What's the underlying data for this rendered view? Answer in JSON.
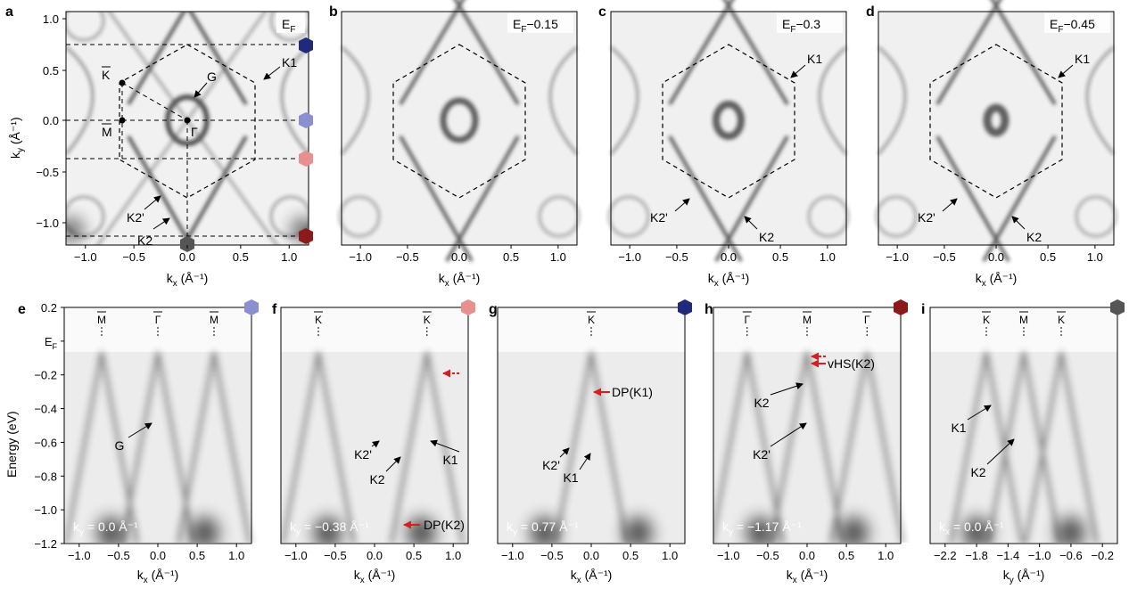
{
  "colors": {
    "hex_dark_blue": "#1f2a7a",
    "hex_light_blue": "#8a8fd0",
    "hex_pink": "#e89090",
    "hex_dark_red": "#8b1a1a",
    "hex_gray": "#555555",
    "arrow_red": "#d42020"
  },
  "top_panels": [
    {
      "label": "a",
      "energy": "E",
      "energy_sub": "F",
      "energy_suffix": ""
    },
    {
      "label": "b",
      "energy": "E",
      "energy_sub": "F",
      "energy_suffix": "−0.15"
    },
    {
      "label": "c",
      "energy": "E",
      "energy_sub": "F",
      "energy_suffix": "−0.3"
    },
    {
      "label": "d",
      "energy": "E",
      "energy_sub": "F",
      "energy_suffix": "−0.45"
    }
  ],
  "top_axes": {
    "x_ticks": [
      "−1.0",
      "−0.5",
      "0.0",
      "0.5",
      "1.0"
    ],
    "y_ticks": [
      "1.0",
      "0.5",
      "0.0",
      "−0.5",
      "−1.0"
    ],
    "xlabel": "k",
    "xlabel_sub": "x",
    "xlabel_unit": " (Å⁻¹)",
    "ylabel": "k",
    "ylabel_sub": "y",
    "ylabel_unit": " (Å⁻¹)"
  },
  "panel_a_annotations": {
    "G": "G",
    "K1": "K1",
    "K2p": "K2'",
    "K2": "K2",
    "Kbar": "K",
    "Mbar": "M",
    "Gamma": "Γ"
  },
  "panel_c_annotations": {
    "K1": "K1",
    "K2p": "K2'",
    "K2": "K2"
  },
  "panel_d_annotations": {
    "K1": "K1",
    "K2p": "K2'",
    "K2": "K2"
  },
  "bottom_panels": [
    {
      "label": "e",
      "momentum": "k",
      "momentum_sub": "y",
      "momentum_val": " = 0.0 Å⁻¹",
      "xlabel": "k",
      "xlabel_sub": "x",
      "x_ticks": [
        "−1.0",
        "−0.5",
        "0.0",
        "0.5",
        "1.0"
      ],
      "sym_points": [
        "M",
        "Γ",
        "M"
      ]
    },
    {
      "label": "f",
      "momentum": "k",
      "momentum_sub": "y",
      "momentum_val": " = −0.38 Å⁻¹",
      "xlabel": "k",
      "xlabel_sub": "x",
      "x_ticks": [
        "−1.0",
        "−0.5",
        "0.0",
        "0.5",
        "1.0"
      ],
      "sym_points": [
        "K",
        "K"
      ]
    },
    {
      "label": "g",
      "momentum": "k",
      "momentum_sub": "y",
      "momentum_val": " = 0.77 Å⁻¹",
      "xlabel": "k",
      "xlabel_sub": "x",
      "x_ticks": [
        "−1.0",
        "−0.5",
        "0.0",
        "0.5",
        "1.0"
      ],
      "sym_points": [
        "K"
      ]
    },
    {
      "label": "h",
      "momentum": "k",
      "momentum_sub": "y",
      "momentum_val": " = −1.17 Å⁻¹",
      "xlabel": "k",
      "xlabel_sub": "x",
      "x_ticks": [
        "−1.0",
        "−0.5",
        "0.0",
        "0.5",
        "1.0"
      ],
      "sym_points": [
        "Γ",
        "M",
        "Γ"
      ]
    },
    {
      "label": "i",
      "momentum": "k",
      "momentum_sub": "x",
      "momentum_val": " = 0.0 Å⁻¹",
      "xlabel": "k",
      "xlabel_sub": "y",
      "x_ticks": [
        "−2.2",
        "−1.8",
        "−1.4",
        "−1.0",
        "−0.6",
        "−0.2"
      ],
      "sym_points": [
        "K",
        "M",
        "K"
      ]
    }
  ],
  "bottom_axes": {
    "y_ticks": [
      "0.2",
      "E",
      "−0.2",
      "−0.4",
      "−0.6",
      "−0.8",
      "−1.0",
      "−1.2"
    ],
    "ef_sub": "F",
    "ylabel": "Energy (eV)",
    "xlabel_unit": " (Å⁻¹)"
  },
  "bottom_annotations": {
    "e": {
      "G": "G"
    },
    "f": {
      "K2p": "K2'",
      "K2": "K2",
      "K1": "K1",
      "DP": "DP(K2)"
    },
    "g": {
      "DP": "DP(K1)",
      "K2p": "K2'",
      "K1": "K1"
    },
    "h": {
      "K2": "K2",
      "vHS": "vHS(K2)",
      "K2p": "K2'"
    },
    "i": {
      "K1": "K1",
      "K2": "K2"
    }
  }
}
